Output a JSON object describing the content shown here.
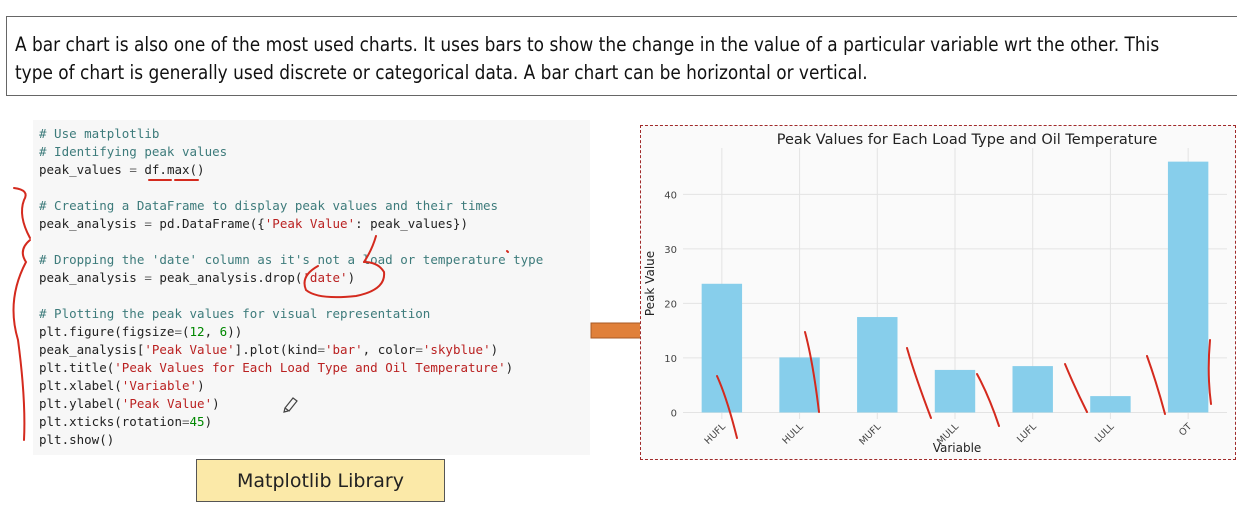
{
  "caption": {
    "line1": "A bar chart is also one of the most used charts. It uses bars to show the change in the value of a particular variable wrt the other. This",
    "line2": "type of chart is generally used discrete or categorical data. A bar chart can be horizontal or vertical."
  },
  "code_lines": [
    [
      [
        "# Use matplotlib",
        "com"
      ]
    ],
    [
      [
        "# Identifying peak values",
        "com"
      ]
    ],
    [
      [
        "peak_values ",
        ""
      ],
      [
        "=",
        "op"
      ],
      [
        " df",
        ""
      ],
      [
        ".",
        ""
      ],
      [
        "max",
        ""
      ],
      [
        "()",
        ""
      ]
    ],
    [],
    [
      [
        "# Creating a DataFrame to display peak values and their times",
        "com"
      ]
    ],
    [
      [
        "peak_analysis ",
        ""
      ],
      [
        "=",
        "op"
      ],
      [
        " pd.DataFrame({",
        ""
      ],
      [
        "'Peak Value'",
        "str"
      ],
      [
        ": peak_values})",
        ""
      ]
    ],
    [],
    [
      [
        "# Dropping the 'date' column as it's not a load or temperature type",
        "com"
      ]
    ],
    [
      [
        "peak_analysis ",
        ""
      ],
      [
        "=",
        "op"
      ],
      [
        " peak_analysis.drop(",
        ""
      ],
      [
        "'date'",
        "str"
      ],
      [
        ")",
        ""
      ]
    ],
    [],
    [
      [
        "# Plotting the peak values for visual representation",
        "com"
      ]
    ],
    [
      [
        "plt.figure(figsize",
        ""
      ],
      [
        "=",
        "op"
      ],
      [
        "(",
        ""
      ],
      [
        "12",
        "num"
      ],
      [
        ", ",
        ""
      ],
      [
        "6",
        "num"
      ],
      [
        "))",
        ""
      ]
    ],
    [
      [
        "peak_analysis[",
        ""
      ],
      [
        "'Peak Value'",
        "str"
      ],
      [
        "].plot(kind",
        ""
      ],
      [
        "=",
        "op"
      ],
      [
        "'bar'",
        "str"
      ],
      [
        ", color",
        ""
      ],
      [
        "=",
        "op"
      ],
      [
        "'skyblue'",
        "str"
      ],
      [
        ")",
        ""
      ]
    ],
    [
      [
        "plt.title(",
        ""
      ],
      [
        "'Peak Values for Each Load Type and Oil Temperature'",
        "str"
      ],
      [
        ")",
        ""
      ]
    ],
    [
      [
        "plt.xlabel(",
        ""
      ],
      [
        "'Variable'",
        "str"
      ],
      [
        ")",
        ""
      ]
    ],
    [
      [
        "plt.ylabel(",
        ""
      ],
      [
        "'Peak Value'",
        "str"
      ],
      [
        ")",
        ""
      ]
    ],
    [
      [
        "plt.xticks(rotation",
        ""
      ],
      [
        "=",
        "op"
      ],
      [
        "45",
        "num"
      ],
      [
        ")",
        ""
      ]
    ],
    [
      [
        "plt.show()",
        ""
      ]
    ]
  ],
  "library_label": "Matplotlib Library",
  "chart_data": {
    "type": "bar",
    "title": "Peak Values for Each Load Type and Oil Temperature",
    "xlabel": "Variable",
    "ylabel": "Peak Value",
    "categories": [
      "HUFL",
      "HULL",
      "MUFL",
      "MULL",
      "LUFL",
      "LULL",
      "OT"
    ],
    "values": [
      23.6,
      10.1,
      17.5,
      7.8,
      8.5,
      3.0,
      46.0
    ],
    "ylim": [
      -1.2,
      48.5
    ],
    "yticks": [
      0,
      10,
      20,
      30,
      40
    ],
    "grid": true,
    "bar_color": "#87ceeb",
    "xtick_rotation": 45
  },
  "colors": {
    "annotation_red": "#d42a1e",
    "arrow_orange": "#e0803a",
    "frame_red": "#a02a2a",
    "label_bg": "#fbe9a8"
  }
}
